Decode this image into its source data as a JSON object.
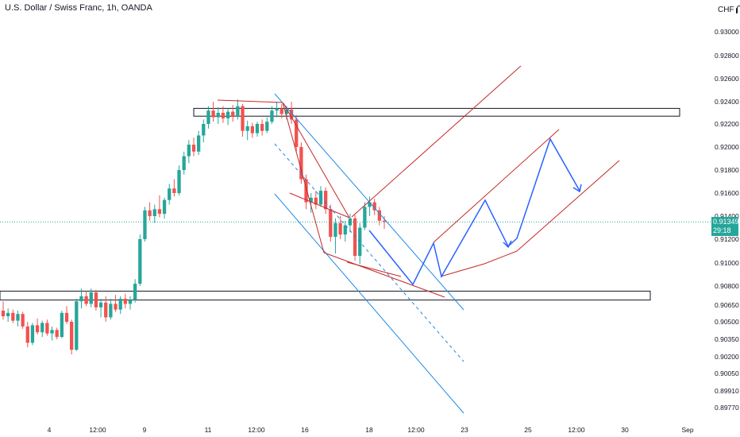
{
  "header": {
    "title": "U.S. Dollar / Swiss Franc, 1h, OANDA"
  },
  "currency": {
    "label": "CHF",
    "lock_icon": "lock-icon"
  },
  "last_price": {
    "price": "0.91349",
    "countdown": "29:18"
  },
  "colors": {
    "up": "#26a69a",
    "down": "#ef5350",
    "channel": "#1e88e5",
    "wedge": "#c62828",
    "path": "#2962ff",
    "zone": "#131722"
  },
  "chart_data": {
    "type": "candlestick",
    "title": "U.S. Dollar / Swiss Franc, 1h, OANDA",
    "xlabel": "",
    "ylabel": "",
    "ylim": [
      0.8968,
      0.9314
    ],
    "grid": false,
    "y_ticks": [
      "0.93000",
      "0.92800",
      "0.92600",
      "0.92400",
      "0.92200",
      "0.92000",
      "0.91800",
      "0.91600",
      "0.91400",
      "0.91200",
      "0.91000",
      "0.90800",
      "0.90650",
      "0.90500",
      "0.90350",
      "0.90200",
      "0.90050",
      "0.89910",
      "0.89770"
    ],
    "x_ticks": [
      "4",
      "12:00",
      "9",
      "11",
      "12:00",
      "16",
      "18",
      "12:00",
      "23",
      "25",
      "12:00",
      "30",
      "Sep"
    ],
    "series": [
      {
        "values": [
          [
            0.906,
            0.9068,
            0.9052,
            0.9055
          ],
          [
            0.9055,
            0.9062,
            0.905,
            0.9058
          ],
          [
            0.9058,
            0.9061,
            0.9049,
            0.9051
          ],
          [
            0.9051,
            0.906,
            0.9046,
            0.9057
          ],
          [
            0.9057,
            0.9059,
            0.9044,
            0.9046
          ],
          [
            0.9046,
            0.905,
            0.9028,
            0.9032
          ],
          [
            0.9032,
            0.9049,
            0.903,
            0.9047
          ],
          [
            0.9047,
            0.9053,
            0.9039,
            0.9041
          ],
          [
            0.9041,
            0.9051,
            0.9037,
            0.9049
          ],
          [
            0.9049,
            0.9052,
            0.9038,
            0.904
          ],
          [
            0.904,
            0.9046,
            0.9034,
            0.9043
          ],
          [
            0.9043,
            0.9045,
            0.9035,
            0.9037
          ],
          [
            0.9037,
            0.906,
            0.9036,
            0.9058
          ],
          [
            0.9058,
            0.9064,
            0.9048,
            0.905
          ],
          [
            0.905,
            0.9052,
            0.9022,
            0.9026
          ],
          [
            0.9026,
            0.907,
            0.9025,
            0.9068
          ],
          [
            0.9068,
            0.9078,
            0.9062,
            0.9072
          ],
          [
            0.9072,
            0.9076,
            0.9064,
            0.9066
          ],
          [
            0.9066,
            0.9078,
            0.9063,
            0.9075
          ],
          [
            0.9075,
            0.9077,
            0.906,
            0.9063
          ],
          [
            0.9063,
            0.907,
            0.9054,
            0.9067
          ],
          [
            0.9067,
            0.9072,
            0.905,
            0.9054
          ],
          [
            0.9054,
            0.907,
            0.9052,
            0.9066
          ],
          [
            0.9066,
            0.9073,
            0.9059,
            0.9061
          ],
          [
            0.9061,
            0.9072,
            0.9057,
            0.907
          ],
          [
            0.907,
            0.9074,
            0.9062,
            0.9066
          ],
          [
            0.9066,
            0.9072,
            0.9061,
            0.9069
          ],
          [
            0.9069,
            0.9086,
            0.9067,
            0.9082
          ],
          [
            0.9082,
            0.9124,
            0.908,
            0.912
          ],
          [
            0.912,
            0.9148,
            0.9118,
            0.9145
          ],
          [
            0.9145,
            0.9152,
            0.9136,
            0.914
          ],
          [
            0.914,
            0.915,
            0.9134,
            0.9146
          ],
          [
            0.9146,
            0.9158,
            0.9139,
            0.9142
          ],
          [
            0.9142,
            0.9156,
            0.9138,
            0.9154
          ],
          [
            0.9154,
            0.9168,
            0.915,
            0.9164
          ],
          [
            0.9164,
            0.9172,
            0.9157,
            0.916
          ],
          [
            0.916,
            0.9184,
            0.9158,
            0.918
          ],
          [
            0.918,
            0.9196,
            0.9176,
            0.9192
          ],
          [
            0.9192,
            0.9206,
            0.9186,
            0.9202
          ],
          [
            0.9202,
            0.9208,
            0.9192,
            0.9196
          ],
          [
            0.9196,
            0.9214,
            0.9193,
            0.921
          ],
          [
            0.921,
            0.9224,
            0.9204,
            0.922
          ],
          [
            0.922,
            0.9236,
            0.9216,
            0.9232
          ],
          [
            0.9232,
            0.924,
            0.9222,
            0.9226
          ],
          [
            0.9226,
            0.9235,
            0.922,
            0.923
          ],
          [
            0.923,
            0.9236,
            0.9221,
            0.9225
          ],
          [
            0.9225,
            0.9234,
            0.9219,
            0.9231
          ],
          [
            0.9231,
            0.9237,
            0.9222,
            0.9227
          ],
          [
            0.9227,
            0.9242,
            0.9224,
            0.9236
          ],
          [
            0.9236,
            0.9238,
            0.9209,
            0.9214
          ],
          [
            0.9214,
            0.9223,
            0.9206,
            0.9218
          ],
          [
            0.9218,
            0.9221,
            0.9208,
            0.9212
          ],
          [
            0.9212,
            0.9222,
            0.9209,
            0.922
          ],
          [
            0.922,
            0.9224,
            0.921,
            0.9214
          ],
          [
            0.9214,
            0.9226,
            0.9212,
            0.9222
          ],
          [
            0.9222,
            0.9236,
            0.922,
            0.9232
          ],
          [
            0.9232,
            0.924,
            0.9226,
            0.9234
          ],
          [
            0.9234,
            0.9238,
            0.9225,
            0.9229
          ],
          [
            0.9229,
            0.9236,
            0.9224,
            0.9233
          ],
          [
            0.9233,
            0.924,
            0.922,
            0.9224
          ],
          [
            0.9224,
            0.9228,
            0.9196,
            0.92
          ],
          [
            0.92,
            0.9204,
            0.9168,
            0.9172
          ],
          [
            0.9172,
            0.9176,
            0.9146,
            0.9152
          ],
          [
            0.9152,
            0.916,
            0.9143,
            0.9156
          ],
          [
            0.9156,
            0.9162,
            0.9146,
            0.915
          ],
          [
            0.915,
            0.9166,
            0.9148,
            0.9162
          ],
          [
            0.9162,
            0.9165,
            0.9142,
            0.9146
          ],
          [
            0.9146,
            0.915,
            0.9118,
            0.9122
          ],
          [
            0.9122,
            0.9138,
            0.9108,
            0.9134
          ],
          [
            0.9134,
            0.914,
            0.912,
            0.9124
          ],
          [
            0.9124,
            0.9136,
            0.9118,
            0.9132
          ],
          [
            0.9132,
            0.9142,
            0.9126,
            0.9138
          ],
          [
            0.9138,
            0.9141,
            0.9102,
            0.9106
          ],
          [
            0.9106,
            0.9134,
            0.9099,
            0.913
          ],
          [
            0.913,
            0.9152,
            0.9128,
            0.9148
          ],
          [
            0.9148,
            0.9157,
            0.914,
            0.9152
          ],
          [
            0.9152,
            0.9155,
            0.9141,
            0.9145
          ],
          [
            0.9145,
            0.9148,
            0.9132,
            0.9136
          ],
          [
            0.9136,
            0.914,
            0.9129,
            0.9135
          ]
        ]
      }
    ],
    "annotations": {
      "resistance_zone": [
        0.9227,
        0.9234
      ],
      "support_zone": [
        0.9069,
        0.9076
      ],
      "current_price": 0.91349
    }
  }
}
